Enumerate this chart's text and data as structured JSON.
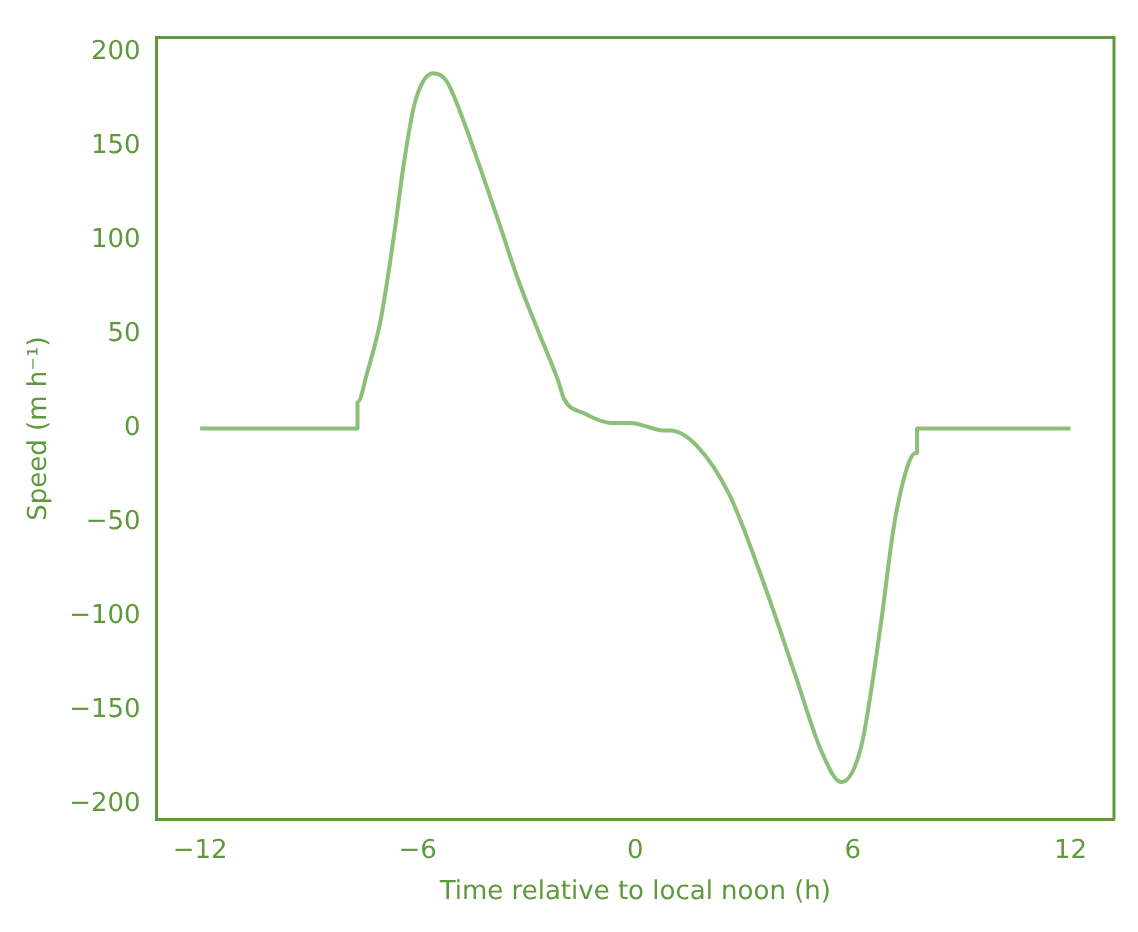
{
  "chart_data": {
    "type": "line",
    "xlabel": "Time relative to local noon (h)",
    "ylabel": "Speed (m h⁻¹)",
    "xlim": [
      -13.2,
      13.2
    ],
    "ylim": [
      -208,
      208
    ],
    "xticks": [
      -12,
      -6,
      0,
      6,
      12
    ],
    "yticks": [
      -200,
      -150,
      -100,
      -50,
      0,
      50,
      100,
      150,
      200
    ],
    "grid": false,
    "legend": false,
    "marker": "none",
    "line_style": "solid",
    "series": [
      {
        "color": "#8cbf78",
        "x": [
          -12,
          -7.66,
          -7.66,
          -7.39,
          -7.02,
          -6.66,
          -6.39,
          -6.11,
          -5.84,
          -5.57,
          -5.21,
          -4.84,
          -4.3,
          -3.75,
          -3.21,
          -2.66,
          -2.12,
          -1.97,
          -1.4,
          -0.67,
          -0.13,
          0.78,
          0.96,
          1.69,
          2.59,
          3.5,
          4.41,
          5.14,
          5.68,
          6.23,
          6.77,
          7.13,
          7.49,
          7.73,
          7.77,
          7.77,
          12
        ],
        "values": [
          0,
          0,
          14,
          30,
          58,
          102,
          140,
          171,
          185,
          189,
          185,
          169,
          140,
          109,
          78,
          51,
          25,
          16,
          8,
          3,
          3,
          -1,
          -1,
          -9,
          -35,
          -80,
          -131,
          -172,
          -188,
          -169,
          -104,
          -52,
          -21,
          -13,
          -13,
          0,
          0
        ]
      }
    ]
  }
}
